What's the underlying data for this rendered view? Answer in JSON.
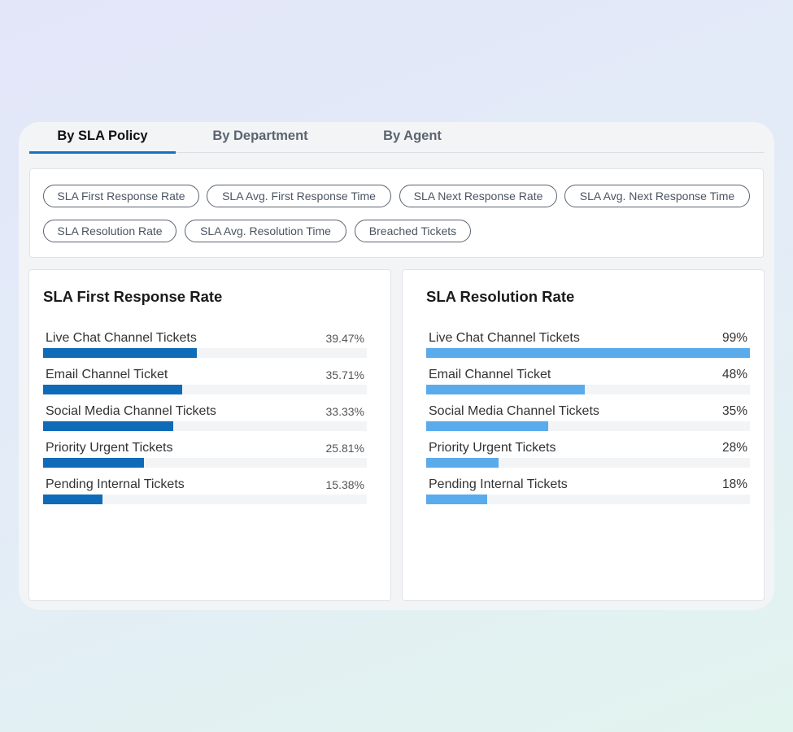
{
  "tabs": [
    {
      "label": "By SLA Policy",
      "active": true
    },
    {
      "label": "By Department",
      "active": false
    },
    {
      "label": "By Agent",
      "active": false
    }
  ],
  "filters": [
    "SLA First Response Rate",
    "SLA Avg. First Response Time",
    "SLA Next Response Rate",
    "SLA Avg. Next Response Time",
    "SLA Resolution Rate",
    "SLA Avg. Resolution Time",
    "Breached Tickets"
  ],
  "colors": {
    "accent": "#1472c5",
    "bar_dark": "#0f6bb8",
    "bar_light": "#5aabec"
  },
  "first_response": {
    "title": "SLA First Response Rate",
    "rows": [
      {
        "label": "Live Chat Channel Tickets",
        "value_text": "39.47%",
        "fraction": 0.4747
      },
      {
        "label": "Email Channel Ticket",
        "value_text": "35.71%",
        "fraction": 0.4293
      },
      {
        "label": "Social Media Channel Tickets",
        "value_text": "33.33%",
        "fraction": 0.4015
      },
      {
        "label": "Priority Urgent Tickets",
        "value_text": "25.81%",
        "fraction": 0.3106
      },
      {
        "label": "Pending Internal Tickets",
        "value_text": "15.38%",
        "fraction": 0.1843
      }
    ]
  },
  "resolution": {
    "title": "SLA Resolution Rate",
    "rows": [
      {
        "label": "Live Chat Channel Tickets",
        "value_text": "99%",
        "fraction": 1.0
      },
      {
        "label": "Email Channel Ticket",
        "value_text": "48%",
        "fraction": 0.4899
      },
      {
        "label": "Social Media Channel Tickets",
        "value_text": "35%",
        "fraction": 0.3763
      },
      {
        "label": "Priority Urgent Tickets",
        "value_text": "28%",
        "fraction": 0.2247
      },
      {
        "label": "Pending Internal Tickets",
        "value_text": "18%",
        "fraction": 0.1894
      }
    ]
  }
}
